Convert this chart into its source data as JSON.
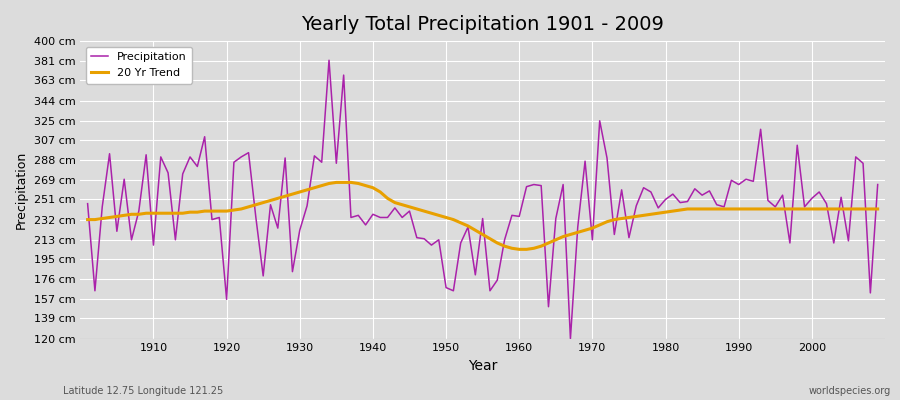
{
  "title": "Yearly Total Precipitation 1901 - 2009",
  "xlabel": "Year",
  "ylabel": "Precipitation",
  "subtitle": "Latitude 12.75 Longitude 121.25",
  "watermark": "worldspecies.org",
  "ylim": [
    120,
    400
  ],
  "yticks": [
    120,
    139,
    157,
    176,
    195,
    213,
    232,
    251,
    269,
    288,
    307,
    325,
    344,
    363,
    381,
    400
  ],
  "ytick_labels": [
    "120 cm",
    "139 cm",
    "157 cm",
    "176 cm",
    "195 cm",
    "213 cm",
    "232 cm",
    "251 cm",
    "269 cm",
    "288 cm",
    "307 cm",
    "325 cm",
    "344 cm",
    "363 cm",
    "381 cm",
    "400 cm"
  ],
  "background_color": "#dcdcdc",
  "plot_bg_color": "#dcdcdc",
  "precip_color": "#aa22aa",
  "trend_color": "#e8a000",
  "precip_linewidth": 1.1,
  "trend_linewidth": 2.2,
  "years": [
    1901,
    1902,
    1903,
    1904,
    1905,
    1906,
    1907,
    1908,
    1909,
    1910,
    1911,
    1912,
    1913,
    1914,
    1915,
    1916,
    1917,
    1918,
    1919,
    1920,
    1921,
    1922,
    1923,
    1924,
    1925,
    1926,
    1927,
    1928,
    1929,
    1930,
    1931,
    1932,
    1933,
    1934,
    1935,
    1936,
    1937,
    1938,
    1939,
    1940,
    1941,
    1942,
    1943,
    1944,
    1945,
    1946,
    1947,
    1948,
    1949,
    1950,
    1951,
    1952,
    1953,
    1954,
    1955,
    1956,
    1957,
    1958,
    1959,
    1960,
    1961,
    1962,
    1963,
    1964,
    1965,
    1966,
    1967,
    1968,
    1969,
    1970,
    1971,
    1972,
    1973,
    1974,
    1975,
    1976,
    1977,
    1978,
    1979,
    1980,
    1981,
    1982,
    1983,
    1984,
    1985,
    1986,
    1987,
    1988,
    1989,
    1990,
    1991,
    1992,
    1993,
    1994,
    1995,
    1996,
    1997,
    1998,
    1999,
    2000,
    2001,
    2002,
    2003,
    2004,
    2005,
    2006,
    2007,
    2008,
    2009
  ],
  "precip": [
    247,
    165,
    244,
    294,
    221,
    270,
    213,
    240,
    293,
    208,
    291,
    276,
    213,
    275,
    291,
    282,
    310,
    232,
    234,
    157,
    286,
    291,
    295,
    234,
    179,
    246,
    224,
    290,
    183,
    222,
    245,
    292,
    286,
    382,
    285,
    368,
    234,
    236,
    227,
    237,
    234,
    234,
    243,
    234,
    240,
    215,
    214,
    208,
    213,
    168,
    165,
    210,
    225,
    180,
    233,
    165,
    175,
    213,
    236,
    235,
    263,
    265,
    264,
    150,
    233,
    265,
    120,
    225,
    287,
    213,
    325,
    290,
    218,
    260,
    215,
    245,
    262,
    258,
    243,
    251,
    256,
    248,
    249,
    261,
    255,
    259,
    246,
    244,
    269,
    265,
    270,
    268,
    317,
    250,
    244,
    255,
    210,
    302,
    244,
    252,
    258,
    247,
    210,
    253,
    212,
    291,
    285,
    163,
    265
  ],
  "trend_years": [
    1901,
    1902,
    1903,
    1904,
    1905,
    1906,
    1907,
    1908,
    1909,
    1910,
    1911,
    1912,
    1913,
    1914,
    1915,
    1916,
    1917,
    1918,
    1919,
    1920,
    1921,
    1922,
    1923,
    1924,
    1925,
    1926,
    1927,
    1928,
    1929,
    1930,
    1931,
    1932,
    1933,
    1934,
    1935,
    1936,
    1937,
    1938,
    1939,
    1940,
    1941,
    1942,
    1943,
    1944,
    1945,
    1946,
    1947,
    1948,
    1949,
    1950,
    1951,
    1952,
    1953,
    1954,
    1955,
    1956,
    1957,
    1958,
    1959,
    1960,
    1961,
    1962,
    1963,
    1964,
    1965,
    1966,
    1967,
    1968,
    1969,
    1970,
    1971,
    1972,
    1973,
    1974,
    1975,
    1976,
    1977,
    1978,
    1979,
    1980,
    1981,
    1982,
    1983,
    1984,
    1985,
    1986,
    1987,
    1988,
    1989,
    1990,
    1991,
    1992,
    1993,
    1994,
    1995,
    1996,
    1997,
    1998,
    1999,
    2000,
    2001,
    2002,
    2003,
    2004,
    2005,
    2006,
    2007,
    2008,
    2009
  ],
  "trend": [
    232,
    232,
    233,
    234,
    235,
    236,
    237,
    237,
    238,
    238,
    238,
    238,
    238,
    238,
    239,
    239,
    240,
    240,
    240,
    240,
    241,
    242,
    244,
    246,
    248,
    250,
    252,
    254,
    256,
    258,
    260,
    262,
    264,
    266,
    267,
    267,
    267,
    266,
    264,
    262,
    258,
    252,
    248,
    246,
    244,
    242,
    240,
    238,
    236,
    234,
    232,
    229,
    226,
    222,
    218,
    214,
    210,
    207,
    205,
    204,
    204,
    205,
    207,
    210,
    213,
    216,
    218,
    220,
    222,
    224,
    227,
    230,
    232,
    233,
    234,
    235,
    236,
    237,
    238,
    239,
    240,
    241,
    242,
    242,
    242,
    242,
    242,
    242,
    242,
    242,
    242,
    242,
    242,
    242,
    242,
    242,
    242,
    242,
    242,
    242,
    242,
    242,
    242,
    242,
    242,
    242,
    242,
    242,
    242
  ]
}
